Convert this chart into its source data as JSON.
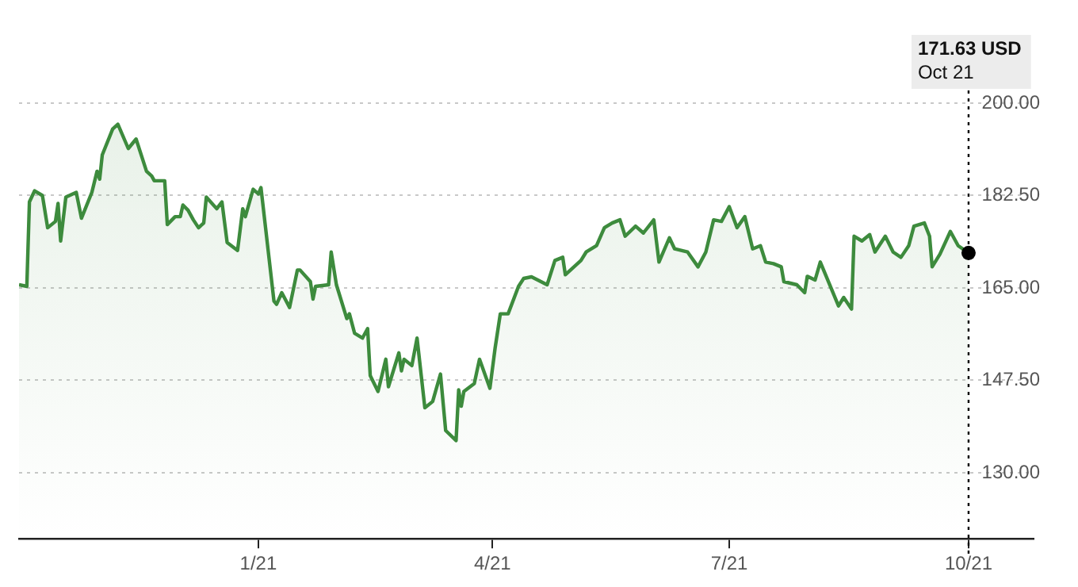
{
  "chart_data": {
    "type": "area",
    "grid": "y",
    "x": [
      "2020-10-01",
      "2020-10-04",
      "2020-10-05",
      "2020-10-07",
      "2020-10-10",
      "2020-10-12",
      "2020-10-15",
      "2020-10-16",
      "2020-10-17",
      "2020-10-19",
      "2020-10-23",
      "2020-10-25",
      "2020-10-29",
      "2020-10-31",
      "2020-11-01",
      "2020-11-02",
      "2020-11-06",
      "2020-11-08",
      "2020-11-12",
      "2020-11-15",
      "2020-11-19",
      "2020-11-21",
      "2020-11-22",
      "2020-11-26",
      "2020-11-27",
      "2020-11-30",
      "2020-12-02",
      "2020-12-03",
      "2020-12-05",
      "2020-12-07",
      "2020-12-09",
      "2020-12-11",
      "2020-12-12",
      "2020-12-16",
      "2020-12-18",
      "2020-12-20",
      "2020-12-24",
      "2020-12-26",
      "2020-12-27",
      "2020-12-30",
      "2021-01-01",
      "2021-01-02",
      "2021-01-07",
      "2021-01-08",
      "2021-01-10",
      "2021-01-13",
      "2021-01-16",
      "2021-01-17",
      "2021-01-21",
      "2021-01-22",
      "2021-01-23",
      "2021-01-28",
      "2021-01-29",
      "2021-01-31",
      "2021-02-04",
      "2021-02-05",
      "2021-02-07",
      "2021-02-10",
      "2021-02-12",
      "2021-02-13",
      "2021-02-16",
      "2021-02-19",
      "2021-02-20",
      "2021-02-24",
      "2021-02-25",
      "2021-02-26",
      "2021-03-01",
      "2021-03-03",
      "2021-03-06",
      "2021-03-09",
      "2021-03-12",
      "2021-03-14",
      "2021-03-18",
      "2021-03-19",
      "2021-03-20",
      "2021-03-21",
      "2021-03-25",
      "2021-03-27",
      "2021-03-31",
      "2021-04-02",
      "2021-04-04",
      "2021-04-07",
      "2021-04-11",
      "2021-04-13",
      "2021-04-16",
      "2021-04-22",
      "2021-04-25",
      "2021-04-28",
      "2021-04-29",
      "2021-05-05",
      "2021-05-07",
      "2021-05-11",
      "2021-05-14",
      "2021-05-17",
      "2021-05-20",
      "2021-05-22",
      "2021-05-26",
      "2021-05-29",
      "2021-06-02",
      "2021-06-04",
      "2021-06-08",
      "2021-06-10",
      "2021-06-15",
      "2021-06-19",
      "2021-06-22",
      "2021-06-25",
      "2021-06-28",
      "2021-07-01",
      "2021-07-04",
      "2021-07-07",
      "2021-07-10",
      "2021-07-13",
      "2021-07-15",
      "2021-07-18",
      "2021-07-21",
      "2021-07-22",
      "2021-07-27",
      "2021-07-30",
      "2021-07-31",
      "2021-08-03",
      "2021-08-05",
      "2021-08-12",
      "2021-08-14",
      "2021-08-17",
      "2021-08-18",
      "2021-08-21",
      "2021-08-24",
      "2021-08-26",
      "2021-08-30",
      "2021-09-02",
      "2021-09-05",
      "2021-09-08",
      "2021-09-10",
      "2021-09-14",
      "2021-09-16",
      "2021-09-17",
      "2021-09-20",
      "2021-09-24",
      "2021-09-27",
      "2021-10-01"
    ],
    "series": [
      {
        "color": "#3d8b3d",
        "values": [
          165.6,
          165.3,
          181.3,
          183.4,
          182.5,
          176.4,
          177.6,
          181.0,
          173.9,
          182.2,
          183.1,
          178.2,
          183.1,
          187.1,
          185.6,
          190.2,
          195.1,
          196.0,
          191.4,
          193.2,
          187.1,
          186.2,
          185.3,
          185.3,
          177.0,
          178.5,
          178.5,
          180.7,
          179.7,
          177.9,
          176.4,
          177.3,
          182.2,
          180.0,
          181.3,
          173.6,
          172.1,
          180.0,
          178.5,
          183.7,
          182.8,
          184.0,
          162.5,
          161.9,
          164.1,
          161.3,
          168.4,
          168.4,
          166.2,
          162.9,
          165.3,
          165.6,
          171.8,
          165.6,
          159.2,
          160.1,
          156.4,
          155.5,
          157.3,
          148.4,
          145.4,
          151.5,
          146.3,
          152.7,
          149.3,
          151.5,
          150.3,
          155.5,
          142.3,
          143.5,
          148.7,
          138.0,
          136.1,
          145.7,
          142.6,
          145.4,
          146.9,
          151.5,
          146.0,
          153.6,
          160.1,
          160.1,
          165.3,
          166.8,
          167.1,
          165.6,
          170.2,
          170.8,
          167.5,
          170.2,
          171.8,
          173.0,
          176.4,
          177.3,
          177.9,
          174.8,
          176.7,
          175.4,
          177.9,
          169.9,
          174.5,
          172.4,
          171.8,
          169.0,
          171.8,
          177.9,
          177.6,
          180.4,
          176.4,
          178.5,
          172.4,
          173.0,
          169.9,
          169.6,
          169.0,
          166.2,
          165.6,
          164.1,
          167.2,
          166.5,
          169.9,
          161.6,
          163.2,
          161.0,
          174.8,
          173.9,
          175.1,
          171.8,
          174.8,
          171.8,
          170.8,
          173.0,
          176.7,
          177.3,
          174.8,
          169.0,
          171.4,
          175.7,
          173.0,
          171.63
        ]
      }
    ],
    "xlim": [
      "2020-10-01",
      "2021-10-26"
    ],
    "xticks": [
      {
        "value": "2021-01-01",
        "label": "1/21"
      },
      {
        "value": "2021-04-01",
        "label": "4/21"
      },
      {
        "value": "2021-07-01",
        "label": "7/21"
      },
      {
        "value": "2021-10-01",
        "label": "10/21"
      }
    ],
    "ylim": [
      117.5,
      200
    ],
    "yticks": [
      {
        "value": 130,
        "label": "130.00"
      },
      {
        "value": 147.5,
        "label": "147.50"
      },
      {
        "value": 165,
        "label": "165.00"
      },
      {
        "value": 182.5,
        "label": "182.50"
      },
      {
        "value": 200,
        "label": "200.00"
      }
    ],
    "ref_lines": [
      {
        "axis": "x",
        "value": "2021-10-01",
        "color": "#000000",
        "line_style": "dotted"
      }
    ],
    "annotations": [
      "171.63 USD\nOct 21"
    ]
  }
}
